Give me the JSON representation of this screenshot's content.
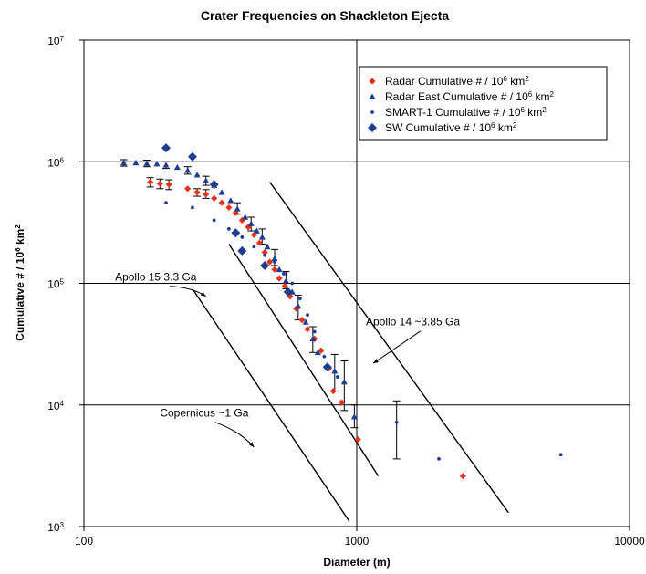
{
  "chart_data": {
    "type": "scatter",
    "title": "Crater Frequencies on Shackleton Ejecta",
    "xlabel": "Diameter (m)",
    "ylabel_main": "Cumulative # / 10",
    "ylabel_exp": "6",
    "ylabel_unit": " km",
    "ylabel_unit_exp": "2",
    "x_scale": "log",
    "y_scale": "log",
    "xlim": [
      100,
      10000
    ],
    "ylim": [
      1000,
      10000000
    ],
    "x_ticks": [
      {
        "value": 100,
        "label": "100"
      },
      {
        "value": 1000,
        "label": "1000"
      },
      {
        "value": 10000,
        "label": "10000"
      }
    ],
    "y_ticks": [
      {
        "value": 1000,
        "base": "10",
        "exp": "3"
      },
      {
        "value": 10000,
        "base": "10",
        "exp": "4"
      },
      {
        "value": 100000,
        "base": "10",
        "exp": "5"
      },
      {
        "value": 1000000,
        "base": "10",
        "exp": "6"
      },
      {
        "value": 10000000,
        "base": "10",
        "exp": "7"
      }
    ],
    "grid": "major gridlines at 10^4, 10^5, 10^6 and x = 1000",
    "legend_position": "top-right",
    "series": [
      {
        "name": "Radar Cumulative # / 10",
        "name_exp": "6",
        "name_unit": " km",
        "name_unit_exp": "2",
        "marker": "diamond-small",
        "color": "#e8331c",
        "points": [
          {
            "x": 175,
            "y": 680000,
            "err": [
              620000,
              740000
            ]
          },
          {
            "x": 190,
            "y": 660000,
            "err": [
              600000,
              720000
            ]
          },
          {
            "x": 205,
            "y": 650000,
            "err": [
              590000,
              710000
            ]
          },
          {
            "x": 240,
            "y": 600000
          },
          {
            "x": 260,
            "y": 560000,
            "err": [
              520000,
              600000
            ]
          },
          {
            "x": 280,
            "y": 540000,
            "err": [
              500000,
              590000
            ]
          },
          {
            "x": 300,
            "y": 500000
          },
          {
            "x": 320,
            "y": 460000
          },
          {
            "x": 340,
            "y": 420000
          },
          {
            "x": 360,
            "y": 380000
          },
          {
            "x": 380,
            "y": 330000
          },
          {
            "x": 400,
            "y": 290000
          },
          {
            "x": 420,
            "y": 250000
          },
          {
            "x": 440,
            "y": 215000
          },
          {
            "x": 460,
            "y": 180000
          },
          {
            "x": 480,
            "y": 150000
          },
          {
            "x": 500,
            "y": 130000
          },
          {
            "x": 520,
            "y": 110000
          },
          {
            "x": 545,
            "y": 95000
          },
          {
            "x": 570,
            "y": 78000
          },
          {
            "x": 600,
            "y": 62000
          },
          {
            "x": 630,
            "y": 50000
          },
          {
            "x": 660,
            "y": 42000
          },
          {
            "x": 700,
            "y": 35000
          },
          {
            "x": 740,
            "y": 28000
          },
          {
            "x": 790,
            "y": 20000
          },
          {
            "x": 820,
            "y": 13000
          },
          {
            "x": 880,
            "y": 10500
          },
          {
            "x": 1010,
            "y": 5200
          },
          {
            "x": 2450,
            "y": 2600
          }
        ]
      },
      {
        "name": "Radar East Cumulative # / 10",
        "name_exp": "6",
        "name_unit": " km",
        "name_unit_exp": "2",
        "marker": "triangle",
        "color": "#1f3c95",
        "points": [
          {
            "x": 140,
            "y": 980000,
            "err": [
              920000,
              1040000
            ]
          },
          {
            "x": 155,
            "y": 980000
          },
          {
            "x": 170,
            "y": 970000,
            "err": [
              910000,
              1030000
            ]
          },
          {
            "x": 185,
            "y": 960000
          },
          {
            "x": 200,
            "y": 940000,
            "err": [
              880000,
              1000000
            ]
          },
          {
            "x": 220,
            "y": 900000
          },
          {
            "x": 240,
            "y": 850000,
            "err": [
              790000,
              910000
            ]
          },
          {
            "x": 260,
            "y": 780000
          },
          {
            "x": 280,
            "y": 700000,
            "err": [
              640000,
              760000
            ]
          },
          {
            "x": 300,
            "y": 640000
          },
          {
            "x": 320,
            "y": 560000
          },
          {
            "x": 345,
            "y": 480000
          },
          {
            "x": 365,
            "y": 410000,
            "err": [
              370000,
              460000
            ]
          },
          {
            "x": 390,
            "y": 350000
          },
          {
            "x": 410,
            "y": 310000,
            "err": [
              270000,
              350000
            ]
          },
          {
            "x": 430,
            "y": 270000
          },
          {
            "x": 450,
            "y": 240000,
            "err": [
              210000,
              280000
            ]
          },
          {
            "x": 470,
            "y": 200000
          },
          {
            "x": 500,
            "y": 160000,
            "err": [
              140000,
              190000
            ]
          },
          {
            "x": 520,
            "y": 130000
          },
          {
            "x": 550,
            "y": 105000,
            "err": [
              90000,
              125000
            ]
          },
          {
            "x": 580,
            "y": 85000
          },
          {
            "x": 610,
            "y": 65000,
            "err": [
              50000,
              80000
            ]
          },
          {
            "x": 650,
            "y": 48000
          },
          {
            "x": 690,
            "y": 35000,
            "err": [
              27000,
              44000
            ]
          },
          {
            "x": 720,
            "y": 27000
          },
          {
            "x": 780,
            "y": 21000
          },
          {
            "x": 830,
            "y": 19000,
            "err": [
              13000,
              26000
            ]
          },
          {
            "x": 900,
            "y": 15500,
            "err": [
              9000,
              23000
            ]
          },
          {
            "x": 980,
            "y": 8000,
            "err": [
              6500,
              10000
            ]
          }
        ]
      },
      {
        "name": "SMART-1 Cumulative # / 10",
        "name_exp": "6",
        "name_unit": " km",
        "name_unit_exp": "2",
        "marker": "dot",
        "color": "#1f3c95",
        "points": [
          {
            "x": 200,
            "y": 460000
          },
          {
            "x": 250,
            "y": 420000
          },
          {
            "x": 300,
            "y": 330000
          },
          {
            "x": 340,
            "y": 280000
          },
          {
            "x": 380,
            "y": 240000
          },
          {
            "x": 420,
            "y": 200000
          },
          {
            "x": 460,
            "y": 170000
          },
          {
            "x": 500,
            "y": 150000
          },
          {
            "x": 540,
            "y": 120000
          },
          {
            "x": 580,
            "y": 100000
          },
          {
            "x": 620,
            "y": 75000
          },
          {
            "x": 660,
            "y": 55000
          },
          {
            "x": 700,
            "y": 40000
          },
          {
            "x": 760,
            "y": 25000
          },
          {
            "x": 850,
            "y": 17000
          },
          {
            "x": 1400,
            "y": 7200,
            "err": [
              3600,
              10800
            ]
          },
          {
            "x": 2000,
            "y": 3600
          },
          {
            "x": 5600,
            "y": 3900
          }
        ]
      },
      {
        "name": "SW Cumulative # / 10",
        "name_exp": "6",
        "name_unit": " km",
        "name_unit_exp": "2",
        "marker": "diamond-large",
        "color": "#1f3c95",
        "points": [
          {
            "x": 200,
            "y": 1300000
          },
          {
            "x": 250,
            "y": 1100000
          },
          {
            "x": 300,
            "y": 650000
          },
          {
            "x": 360,
            "y": 260000
          },
          {
            "x": 380,
            "y": 185000
          },
          {
            "x": 460,
            "y": 140000
          },
          {
            "x": 560,
            "y": 85000
          },
          {
            "x": 780,
            "y": 20500
          }
        ]
      }
    ],
    "reference_lines": [
      {
        "label": "Apollo 14 ~3.85 Ga",
        "from": {
          "x": 480,
          "y": 680000
        },
        "to": {
          "x": 3600,
          "y": 1300
        }
      },
      {
        "label": "Apollo 15 3.3 Ga",
        "from": {
          "x": 340,
          "y": 210000
        },
        "to": {
          "x": 1200,
          "y": 2600
        }
      },
      {
        "label": "Copernicus ~1 Ga",
        "from": {
          "x": 250,
          "y": 90000
        },
        "to": {
          "x": 940,
          "y": 1100
        }
      }
    ],
    "annotations": [
      {
        "text": "Apollo 14 ~3.85 Ga",
        "x": 1080,
        "y": 45000,
        "arrow_to": {
          "x": 1150,
          "y": 22000
        }
      },
      {
        "text": "Apollo 15 3.3 Ga",
        "x": 130,
        "y": 105000,
        "arrow_to": {
          "x": 280,
          "y": 78000
        }
      },
      {
        "text": "Copernicus ~1 Ga",
        "x": 190,
        "y": 8000,
        "arrow_to": {
          "x": 420,
          "y": 4500
        }
      }
    ]
  },
  "colors": {
    "red": "#e8331c",
    "blue": "#1f3c95",
    "axis": "#000000",
    "background": "#ffffff"
  }
}
